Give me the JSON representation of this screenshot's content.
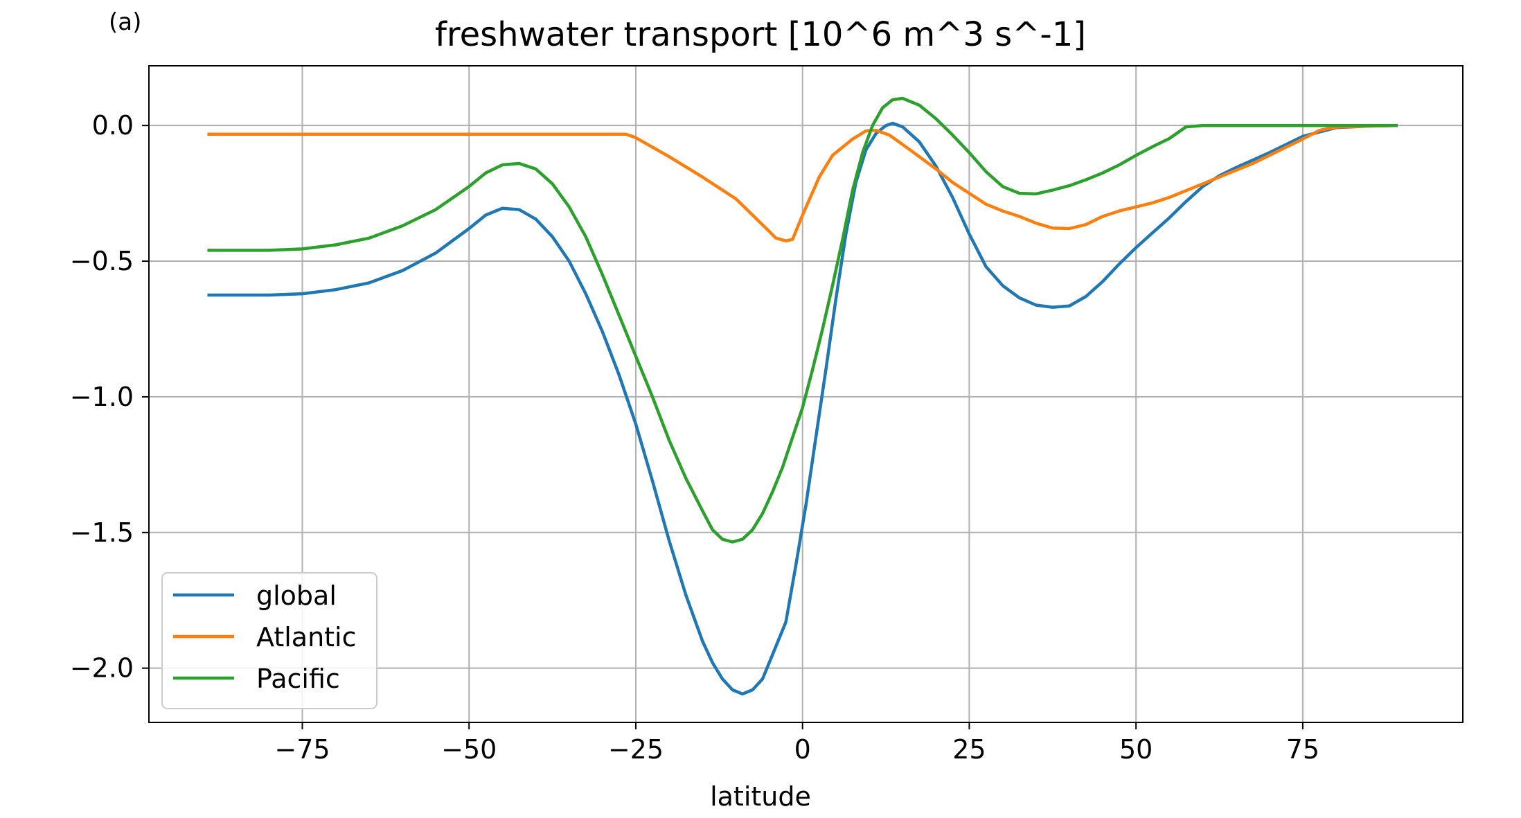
{
  "panel_label": "(a)",
  "chart_data": {
    "type": "line",
    "title": "freshwater transport [10^6 m^3 s^-1]",
    "xlabel": "latitude",
    "ylabel": "",
    "xlim": [
      -98,
      99
    ],
    "ylim": [
      -2.2,
      0.22
    ],
    "xticks": [
      -75,
      -50,
      -25,
      0,
      25,
      50,
      75
    ],
    "xtick_labels": [
      "−75",
      "−50",
      "−25",
      "0",
      "25",
      "50",
      "75"
    ],
    "yticks": [
      0.0,
      -0.5,
      -1.0,
      -1.5,
      -2.0
    ],
    "ytick_labels": [
      "0.0",
      "−0.5",
      "−1.0",
      "−1.5",
      "−2.0"
    ],
    "grid": true,
    "legend_position": "lower-left",
    "series": [
      {
        "name": "global",
        "color": "#1f77b4",
        "points": [
          [
            -89,
            -0.625
          ],
          [
            -80,
            -0.625
          ],
          [
            -75,
            -0.62
          ],
          [
            -70,
            -0.605
          ],
          [
            -65,
            -0.58
          ],
          [
            -60,
            -0.535
          ],
          [
            -55,
            -0.47
          ],
          [
            -50,
            -0.38
          ],
          [
            -47.5,
            -0.33
          ],
          [
            -45,
            -0.305
          ],
          [
            -42.5,
            -0.31
          ],
          [
            -40,
            -0.345
          ],
          [
            -37.5,
            -0.41
          ],
          [
            -35,
            -0.5
          ],
          [
            -32.5,
            -0.62
          ],
          [
            -30,
            -0.76
          ],
          [
            -27.5,
            -0.92
          ],
          [
            -25,
            -1.1
          ],
          [
            -22.5,
            -1.31
          ],
          [
            -20,
            -1.53
          ],
          [
            -17.5,
            -1.73
          ],
          [
            -15,
            -1.9
          ],
          [
            -13.5,
            -1.98
          ],
          [
            -12,
            -2.04
          ],
          [
            -10.5,
            -2.08
          ],
          [
            -9,
            -2.095
          ],
          [
            -7.5,
            -2.08
          ],
          [
            -6,
            -2.04
          ],
          [
            -4.5,
            -1.95
          ],
          [
            -2.5,
            -1.83
          ],
          [
            -1,
            -1.62
          ],
          [
            0.5,
            -1.4
          ],
          [
            2,
            -1.15
          ],
          [
            3.5,
            -0.9
          ],
          [
            5,
            -0.64
          ],
          [
            6.5,
            -0.4
          ],
          [
            8,
            -0.21
          ],
          [
            9.5,
            -0.09
          ],
          [
            11,
            -0.03
          ],
          [
            12.5,
            0.0
          ],
          [
            13.5,
            0.008
          ],
          [
            15,
            -0.005
          ],
          [
            17.5,
            -0.06
          ],
          [
            20,
            -0.15
          ],
          [
            22.5,
            -0.265
          ],
          [
            25,
            -0.4
          ],
          [
            27.5,
            -0.52
          ],
          [
            30,
            -0.59
          ],
          [
            32.5,
            -0.635
          ],
          [
            35,
            -0.662
          ],
          [
            37.5,
            -0.67
          ],
          [
            40,
            -0.665
          ],
          [
            42.5,
            -0.63
          ],
          [
            45,
            -0.575
          ],
          [
            47.5,
            -0.51
          ],
          [
            50,
            -0.45
          ],
          [
            52.5,
            -0.395
          ],
          [
            55,
            -0.34
          ],
          [
            57.5,
            -0.28
          ],
          [
            60,
            -0.225
          ],
          [
            62.5,
            -0.185
          ],
          [
            65,
            -0.155
          ],
          [
            70,
            -0.1
          ],
          [
            75,
            -0.04
          ],
          [
            80,
            -0.008
          ],
          [
            85,
            -0.002
          ],
          [
            89,
            0.0
          ]
        ]
      },
      {
        "name": "Atlantic",
        "color": "#ff7f0e",
        "points": [
          [
            -89,
            -0.032
          ],
          [
            -30,
            -0.032
          ],
          [
            -26.5,
            -0.032
          ],
          [
            -25,
            -0.045
          ],
          [
            -20,
            -0.115
          ],
          [
            -15,
            -0.19
          ],
          [
            -10,
            -0.27
          ],
          [
            -7.5,
            -0.33
          ],
          [
            -5,
            -0.39
          ],
          [
            -4,
            -0.415
          ],
          [
            -2.5,
            -0.425
          ],
          [
            -1.5,
            -0.42
          ],
          [
            0,
            -0.33
          ],
          [
            2.5,
            -0.19
          ],
          [
            4.5,
            -0.11
          ],
          [
            7.5,
            -0.05
          ],
          [
            9.5,
            -0.02
          ],
          [
            11,
            -0.018
          ],
          [
            13,
            -0.035
          ],
          [
            15,
            -0.07
          ],
          [
            17.5,
            -0.115
          ],
          [
            20,
            -0.16
          ],
          [
            22.5,
            -0.21
          ],
          [
            25,
            -0.25
          ],
          [
            27.5,
            -0.29
          ],
          [
            30,
            -0.315
          ],
          [
            32.5,
            -0.335
          ],
          [
            35,
            -0.36
          ],
          [
            37.5,
            -0.378
          ],
          [
            40,
            -0.38
          ],
          [
            42.5,
            -0.365
          ],
          [
            45,
            -0.335
          ],
          [
            47.5,
            -0.315
          ],
          [
            50,
            -0.3
          ],
          [
            52.5,
            -0.285
          ],
          [
            55,
            -0.265
          ],
          [
            57.5,
            -0.24
          ],
          [
            60,
            -0.215
          ],
          [
            62.5,
            -0.19
          ],
          [
            65,
            -0.165
          ],
          [
            67.5,
            -0.14
          ],
          [
            70,
            -0.11
          ],
          [
            72.5,
            -0.08
          ],
          [
            75,
            -0.05
          ],
          [
            77.5,
            -0.018
          ],
          [
            80,
            -0.006
          ],
          [
            85,
            -0.002
          ],
          [
            89,
            0.0
          ]
        ]
      },
      {
        "name": "Pacific",
        "color": "#2ca02c",
        "points": [
          [
            -89,
            -0.46
          ],
          [
            -80,
            -0.46
          ],
          [
            -75,
            -0.455
          ],
          [
            -70,
            -0.44
          ],
          [
            -65,
            -0.415
          ],
          [
            -60,
            -0.37
          ],
          [
            -55,
            -0.31
          ],
          [
            -50,
            -0.225
          ],
          [
            -47.5,
            -0.175
          ],
          [
            -45,
            -0.145
          ],
          [
            -42.5,
            -0.14
          ],
          [
            -40,
            -0.16
          ],
          [
            -37.5,
            -0.215
          ],
          [
            -35,
            -0.3
          ],
          [
            -32.5,
            -0.41
          ],
          [
            -30,
            -0.55
          ],
          [
            -27.5,
            -0.7
          ],
          [
            -25,
            -0.85
          ],
          [
            -22.5,
            -1.0
          ],
          [
            -20,
            -1.16
          ],
          [
            -17.5,
            -1.3
          ],
          [
            -15,
            -1.42
          ],
          [
            -13.5,
            -1.49
          ],
          [
            -12,
            -1.525
          ],
          [
            -10.5,
            -1.535
          ],
          [
            -9,
            -1.525
          ],
          [
            -7.5,
            -1.49
          ],
          [
            -6,
            -1.43
          ],
          [
            -4.5,
            -1.35
          ],
          [
            -3,
            -1.26
          ],
          [
            -1.5,
            -1.15
          ],
          [
            0,
            -1.04
          ],
          [
            1.5,
            -0.9
          ],
          [
            3,
            -0.75
          ],
          [
            4.5,
            -0.59
          ],
          [
            6,
            -0.42
          ],
          [
            7.5,
            -0.24
          ],
          [
            9,
            -0.1
          ],
          [
            10.5,
            0.0
          ],
          [
            12,
            0.065
          ],
          [
            13.5,
            0.095
          ],
          [
            15,
            0.1
          ],
          [
            17.5,
            0.075
          ],
          [
            20,
            0.025
          ],
          [
            22.5,
            -0.035
          ],
          [
            25,
            -0.1
          ],
          [
            27.5,
            -0.17
          ],
          [
            30,
            -0.225
          ],
          [
            32.5,
            -0.25
          ],
          [
            35,
            -0.252
          ],
          [
            37.5,
            -0.238
          ],
          [
            40,
            -0.222
          ],
          [
            42.5,
            -0.2
          ],
          [
            45,
            -0.175
          ],
          [
            47.5,
            -0.145
          ],
          [
            50,
            -0.11
          ],
          [
            52.5,
            -0.078
          ],
          [
            55,
            -0.048
          ],
          [
            57.5,
            -0.005
          ],
          [
            60,
            0.0
          ],
          [
            70,
            0.0
          ],
          [
            80,
            0.0
          ],
          [
            89,
            0.0
          ]
        ]
      }
    ]
  }
}
